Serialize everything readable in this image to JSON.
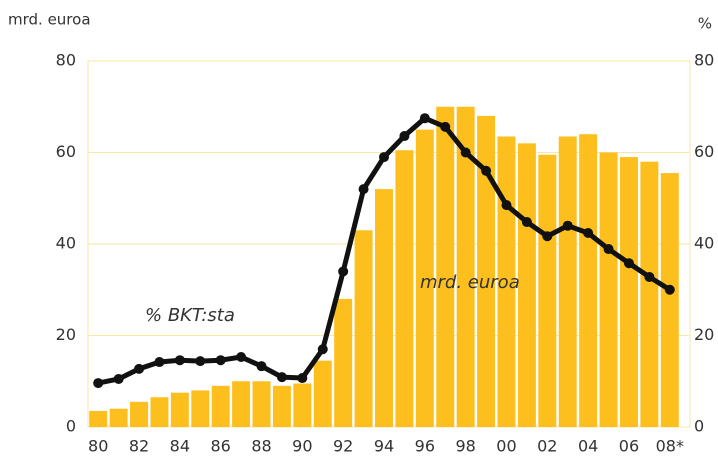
{
  "chart_data": {
    "type": "bar_line",
    "y_label": "mrd. euroa",
    "y2_label": "%",
    "categories": [
      "80",
      null,
      "82",
      null,
      "84",
      null,
      "86",
      null,
      "88",
      null,
      "90",
      null,
      "92",
      null,
      "94",
      null,
      "96",
      null,
      "98",
      null,
      "00",
      null,
      "02",
      null,
      "04",
      null,
      "06",
      null,
      "08*"
    ],
    "series": [
      {
        "name": "mrd. euroa",
        "color": "#fdbf1e",
        "values": [
          3.5,
          4,
          5.5,
          6.5,
          7.5,
          8,
          9,
          10,
          10,
          9,
          9.5,
          14.5,
          28,
          43,
          52,
          60.5,
          65,
          70,
          70,
          68,
          63.5,
          62,
          59.5,
          63.5,
          64,
          60,
          59,
          58,
          55.5
        ]
      },
      {
        "name": "% BKT:sta",
        "color": "#111111",
        "axis": "y2",
        "values": [
          9.6,
          10.5,
          12.7,
          14.2,
          14.6,
          14.4,
          14.6,
          15.3,
          13.3,
          10.9,
          10.7,
          17,
          34,
          52,
          59,
          63.6,
          67.5,
          65.6,
          60,
          56,
          48.5,
          44.8,
          41.7,
          44,
          42.4,
          38.9,
          35.8,
          32.8,
          30
        ]
      }
    ],
    "ylim": [
      0,
      80
    ],
    "yticks": [
      0,
      20,
      40,
      60,
      80
    ],
    "y2lim": [
      0,
      80
    ],
    "y2ticks": [
      0,
      20,
      40,
      60,
      80
    ],
    "grid": true
  }
}
